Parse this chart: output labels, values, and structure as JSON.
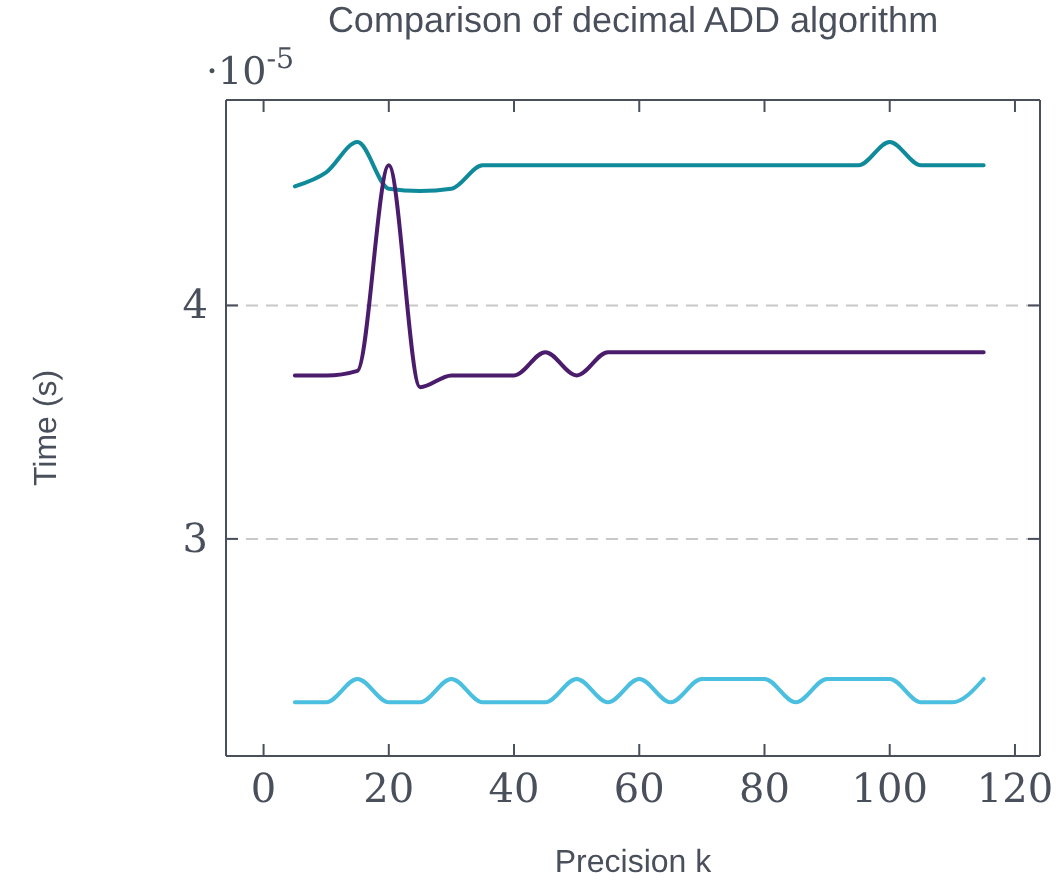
{
  "chart_data": {
    "type": "line",
    "title": "Comparison of decimal ADD algorithm",
    "xlabel": "Precision k",
    "ylabel": "Time (s)",
    "annotations": [
      "·10$^{-5}$"
    ],
    "x": [
      5,
      10,
      15,
      20,
      25,
      30,
      35,
      40,
      45,
      50,
      55,
      60,
      65,
      70,
      75,
      80,
      85,
      90,
      95,
      100,
      105,
      110,
      115
    ],
    "series": [
      {
        "color": "#0e8a9a",
        "values": [
          4.51,
          4.57,
          4.7,
          4.5,
          4.49,
          4.5,
          4.6,
          4.6,
          4.6,
          4.6,
          4.6,
          4.6,
          4.6,
          4.6,
          4.6,
          4.6,
          4.6,
          4.6,
          4.6,
          4.7,
          4.6,
          4.6,
          4.6
        ]
      },
      {
        "color": "#4b1c6b",
        "values": [
          3.7,
          3.7,
          3.72,
          4.6,
          3.65,
          3.7,
          3.7,
          3.7,
          3.8,
          3.7,
          3.8,
          3.8,
          3.8,
          3.8,
          3.8,
          3.8,
          3.8,
          3.8,
          3.8,
          3.8,
          3.8,
          3.8,
          3.8
        ]
      },
      {
        "color": "#4bbfe0",
        "values": [
          2.3,
          2.3,
          2.4,
          2.3,
          2.3,
          2.4,
          2.3,
          2.3,
          2.3,
          2.4,
          2.3,
          2.4,
          2.3,
          2.4,
          2.4,
          2.4,
          2.3,
          2.4,
          2.4,
          2.4,
          2.3,
          2.3,
          2.4
        ]
      }
    ],
    "xlim": [
      -6,
      124
    ],
    "ylim": [
      2.07,
      4.88
    ],
    "xticks": [
      0,
      20,
      40,
      60,
      80,
      100,
      120
    ],
    "yticks": [
      3,
      4
    ],
    "grid": "y",
    "line_style": "solid",
    "marker": "none"
  }
}
